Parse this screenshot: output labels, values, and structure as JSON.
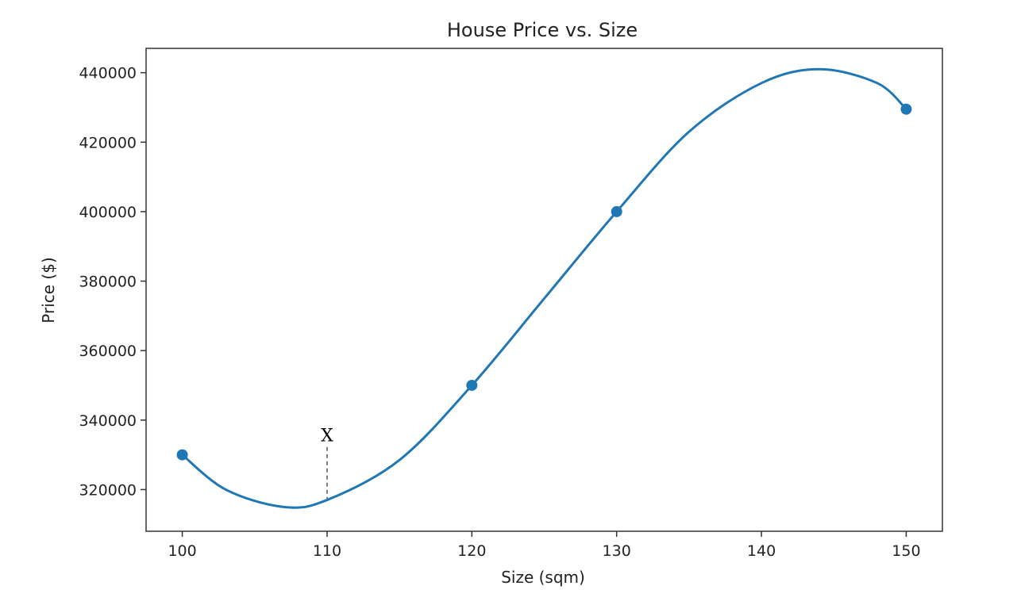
{
  "chart_data": {
    "type": "line",
    "title": "House Price vs. Size",
    "xlabel": "Size (sqm)",
    "ylabel": "Price ($)",
    "xlim": [
      97.5,
      152.5
    ],
    "ylim": [
      308000,
      447000
    ],
    "xticks": [
      100,
      110,
      120,
      130,
      140,
      150
    ],
    "yticks": [
      320000,
      340000,
      360000,
      380000,
      400000,
      420000,
      440000
    ],
    "grid": false,
    "series": [
      {
        "color": "#1f77b4",
        "points": [
          {
            "x": 100,
            "y": 330000
          },
          {
            "x": 120,
            "y": 350000
          },
          {
            "x": 130,
            "y": 400000
          },
          {
            "x": 150,
            "y": 429500
          }
        ],
        "curve": [
          {
            "x": 100,
            "y": 330000
          },
          {
            "x": 103,
            "y": 320000
          },
          {
            "x": 107,
            "y": 315000
          },
          {
            "x": 110,
            "y": 317000
          },
          {
            "x": 115,
            "y": 328500
          },
          {
            "x": 120,
            "y": 350000
          },
          {
            "x": 125,
            "y": 375000
          },
          {
            "x": 130,
            "y": 400000
          },
          {
            "x": 135,
            "y": 423000
          },
          {
            "x": 140,
            "y": 437000
          },
          {
            "x": 144,
            "y": 441000
          },
          {
            "x": 148,
            "y": 437000
          },
          {
            "x": 150,
            "y": 429500
          }
        ]
      }
    ],
    "annotation": {
      "text": "X",
      "x": 110,
      "y_top": 335000,
      "y_bottom": 317000
    }
  }
}
